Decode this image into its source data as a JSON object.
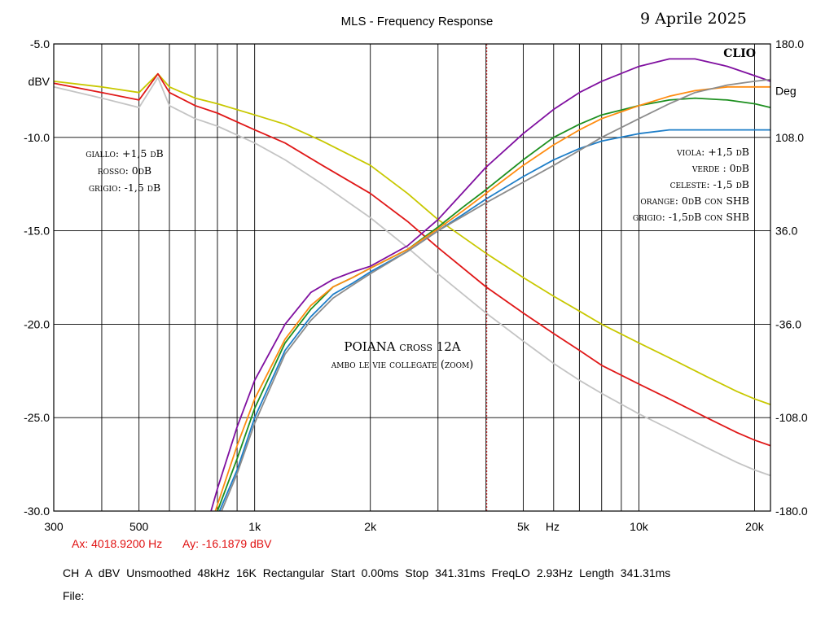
{
  "header": {
    "title": "MLS - Frequency Response",
    "date": "9 Aprile 2025"
  },
  "cursor": {
    "ax": "Ax: 4018.9200 Hz",
    "ay": "Ay: -16.1879 dBV"
  },
  "footer": {
    "settings": "CH A   dBV   Unsmoothed   48kHz   16K   Rectangular   Start 0.00ms   Stop 341.31ms   FreqLO 2.93Hz   Length 341.31ms",
    "file": "File:"
  },
  "chart_data": {
    "type": "line",
    "title": "MLS - Frequency Response",
    "brand": "CLIO",
    "xscale": "log",
    "xlim": [
      300,
      22000
    ],
    "ylim": [
      -30,
      -5
    ],
    "y2lim": [
      -180,
      180
    ],
    "ylabel": "dBV",
    "y2label": "Deg",
    "xunit_label": "Hz",
    "grid": true,
    "x_tick_labels": [
      {
        "v": 300,
        "t": "300"
      },
      {
        "v": 500,
        "t": "500"
      },
      {
        "v": 1000,
        "t": "1k"
      },
      {
        "v": 2000,
        "t": "2k"
      },
      {
        "v": 5000,
        "t": "5k"
      },
      {
        "v": 10000,
        "t": "10k"
      },
      {
        "v": 20000,
        "t": "20k"
      }
    ],
    "y_ticks": [
      {
        "v": -5,
        "t": "-5.0"
      },
      {
        "v": -10,
        "t": "-10.0"
      },
      {
        "v": -15,
        "t": "-15.0"
      },
      {
        "v": -20,
        "t": "-20.0"
      },
      {
        "v": -25,
        "t": "-25.0"
      },
      {
        "v": -30,
        "t": "-30.0"
      }
    ],
    "y2_ticks": [
      {
        "v": 180,
        "t": "180.0"
      },
      {
        "v": 108,
        "t": "108.0"
      },
      {
        "v": 36,
        "t": "36.0"
      },
      {
        "v": -36,
        "t": "-36.0"
      },
      {
        "v": -108,
        "t": "-108.0"
      },
      {
        "v": -180,
        "t": "-180.0"
      }
    ],
    "cursor_x": 4018.92,
    "annotations": {
      "left": [
        "giallo: +1,5 dB",
        "rosso: 0dB",
        "grigio: -1,5 dB"
      ],
      "right": [
        "viola: +1,5 dB",
        "verde : 0dB",
        "celeste: -1,5 dB",
        "orange: 0dB con SHB",
        "grigio: -1,5dB con SHB"
      ],
      "center_title": "POIANA  cross 12A",
      "center_subtitle": "ambo le vie collegate (zoom)"
    },
    "series": [
      {
        "color": "#c8c800",
        "x": [
          300,
          400,
          500,
          560,
          600,
          700,
          800,
          1000,
          1200,
          1500,
          2000,
          2500,
          3000,
          4000,
          5000,
          6000,
          7000,
          8000,
          10000,
          12000,
          15000,
          18000,
          20000,
          22000
        ],
        "y": [
          -7.0,
          -7.3,
          -7.6,
          -6.6,
          -7.3,
          -7.9,
          -8.2,
          -8.8,
          -9.3,
          -10.2,
          -11.5,
          -13.0,
          -14.4,
          -16.2,
          -17.5,
          -18.5,
          -19.3,
          -20.0,
          -21.0,
          -21.8,
          -22.8,
          -23.6,
          -24.0,
          -24.3
        ]
      },
      {
        "color": "#e01818",
        "x": [
          300,
          400,
          500,
          560,
          600,
          700,
          800,
          1000,
          1200,
          1500,
          2000,
          2500,
          3000,
          4000,
          5000,
          6000,
          7000,
          8000,
          10000,
          12000,
          15000,
          18000,
          20000,
          22000
        ],
        "y": [
          -7.1,
          -7.6,
          -8.0,
          -6.6,
          -7.6,
          -8.3,
          -8.7,
          -9.6,
          -10.3,
          -11.5,
          -13.0,
          -14.5,
          -15.9,
          -18.0,
          -19.4,
          -20.5,
          -21.4,
          -22.2,
          -23.2,
          -24.0,
          -25.0,
          -25.8,
          -26.2,
          -26.5
        ]
      },
      {
        "color": "#c4c4c4",
        "x": [
          300,
          400,
          500,
          560,
          600,
          700,
          800,
          1000,
          1200,
          1500,
          2000,
          2500,
          3000,
          4000,
          5000,
          6000,
          7000,
          8000,
          10000,
          12000,
          15000,
          18000,
          20000,
          22000
        ],
        "y": [
          -7.3,
          -7.9,
          -8.4,
          -6.8,
          -8.3,
          -9.0,
          -9.4,
          -10.3,
          -11.2,
          -12.5,
          -14.3,
          -15.9,
          -17.3,
          -19.4,
          -20.9,
          -22.1,
          -23.0,
          -23.7,
          -24.8,
          -25.6,
          -26.6,
          -27.4,
          -27.8,
          -28.1
        ]
      },
      {
        "color": "#8010a0",
        "x": [
          770,
          800,
          900,
          1000,
          1200,
          1400,
          1600,
          1800,
          2000,
          2500,
          3000,
          3500,
          4000,
          5000,
          6000,
          7000,
          8000,
          10000,
          12000,
          14000,
          17000,
          20000,
          22000
        ],
        "y": [
          -30.0,
          -28.8,
          -25.5,
          -23.0,
          -20.0,
          -18.3,
          -17.6,
          -17.2,
          -16.9,
          -15.8,
          -14.4,
          -12.9,
          -11.6,
          -9.8,
          -8.5,
          -7.6,
          -7.0,
          -6.2,
          -5.8,
          -5.8,
          -6.2,
          -6.7,
          -7.0
        ]
      },
      {
        "color": "#1e9020",
        "x": [
          800,
          900,
          1000,
          1200,
          1400,
          1600,
          1800,
          2000,
          2500,
          3000,
          3500,
          4000,
          5000,
          6000,
          7000,
          8000,
          10000,
          12000,
          14000,
          17000,
          20000,
          22000
        ],
        "y": [
          -30.0,
          -27.2,
          -24.5,
          -21.0,
          -19.2,
          -18.0,
          -17.5,
          -17.0,
          -16.0,
          -14.8,
          -13.7,
          -12.8,
          -11.2,
          -10.0,
          -9.3,
          -8.8,
          -8.3,
          -8.0,
          -7.9,
          -8.0,
          -8.2,
          -8.4
        ]
      },
      {
        "color": "#ff8c10",
        "x": [
          790,
          900,
          1000,
          1200,
          1400,
          1600,
          1800,
          2000,
          2500,
          3000,
          3500,
          4000,
          5000,
          6000,
          7000,
          8000,
          10000,
          12000,
          14000,
          17000,
          20000,
          22000
        ],
        "y": [
          -30.0,
          -26.5,
          -24.0,
          -20.8,
          -19.0,
          -18.0,
          -17.5,
          -17.0,
          -16.0,
          -14.9,
          -13.9,
          -13.0,
          -11.5,
          -10.4,
          -9.6,
          -9.0,
          -8.3,
          -7.8,
          -7.5,
          -7.3,
          -7.3,
          -7.3
        ]
      },
      {
        "color": "#1e7ec8",
        "x": [
          810,
          900,
          1000,
          1200,
          1400,
          1600,
          1800,
          2000,
          2500,
          3000,
          3500,
          4000,
          5000,
          6000,
          7000,
          8000,
          10000,
          12000,
          14000,
          17000,
          20000,
          22000
        ],
        "y": [
          -30.0,
          -27.8,
          -25.0,
          -21.4,
          -19.6,
          -18.4,
          -17.8,
          -17.2,
          -16.1,
          -15.0,
          -14.1,
          -13.3,
          -12.1,
          -11.2,
          -10.6,
          -10.2,
          -9.8,
          -9.6,
          -9.6,
          -9.6,
          -9.6,
          -9.6
        ]
      },
      {
        "color": "#8c8c8c",
        "x": [
          820,
          900,
          1000,
          1200,
          1400,
          1600,
          1800,
          2000,
          2500,
          3000,
          3500,
          4000,
          5000,
          6000,
          7000,
          8000,
          10000,
          12000,
          14000,
          17000,
          20000,
          22000
        ],
        "y": [
          -30.0,
          -28.0,
          -25.3,
          -21.6,
          -19.8,
          -18.6,
          -17.9,
          -17.3,
          -16.1,
          -15.0,
          -14.2,
          -13.5,
          -12.4,
          -11.5,
          -10.7,
          -10.0,
          -9.0,
          -8.2,
          -7.6,
          -7.2,
          -7.0,
          -6.9
        ]
      }
    ]
  }
}
